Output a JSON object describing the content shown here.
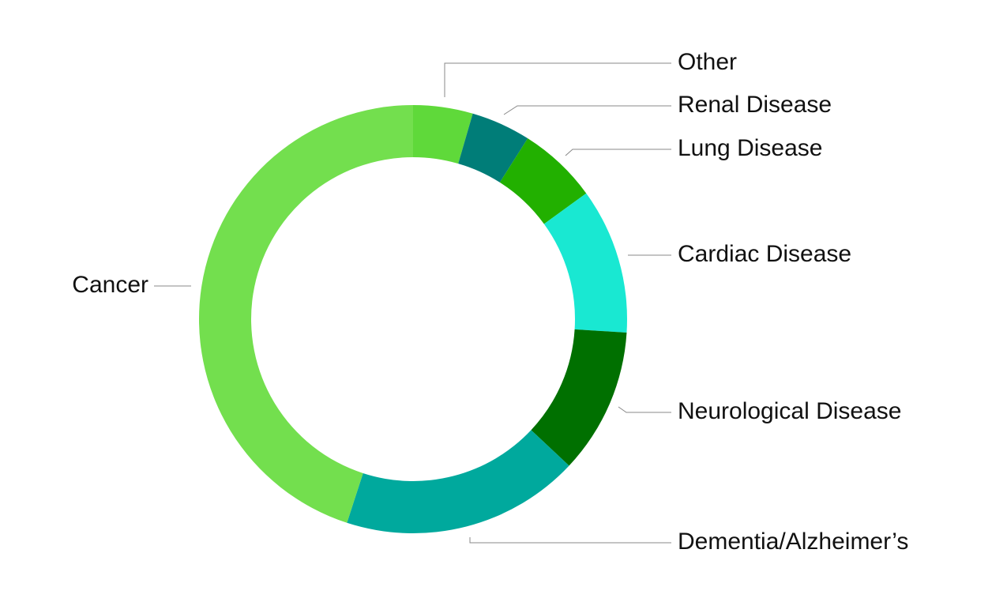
{
  "chart_data": {
    "type": "donut",
    "categories": [
      "Other",
      "Renal Disease",
      "Lung Disease",
      "Cardiac Disease",
      "Neurological Disease",
      "Dementia/Alzheimer’s",
      "Cancer"
    ],
    "values": [
      4.5,
      4.5,
      6,
      11,
      11,
      18,
      45
    ],
    "colors": [
      "#5fd93a",
      "#007d78",
      "#22b000",
      "#19e8d2",
      "#007000",
      "#00a99d",
      "#73df4e"
    ]
  }
}
